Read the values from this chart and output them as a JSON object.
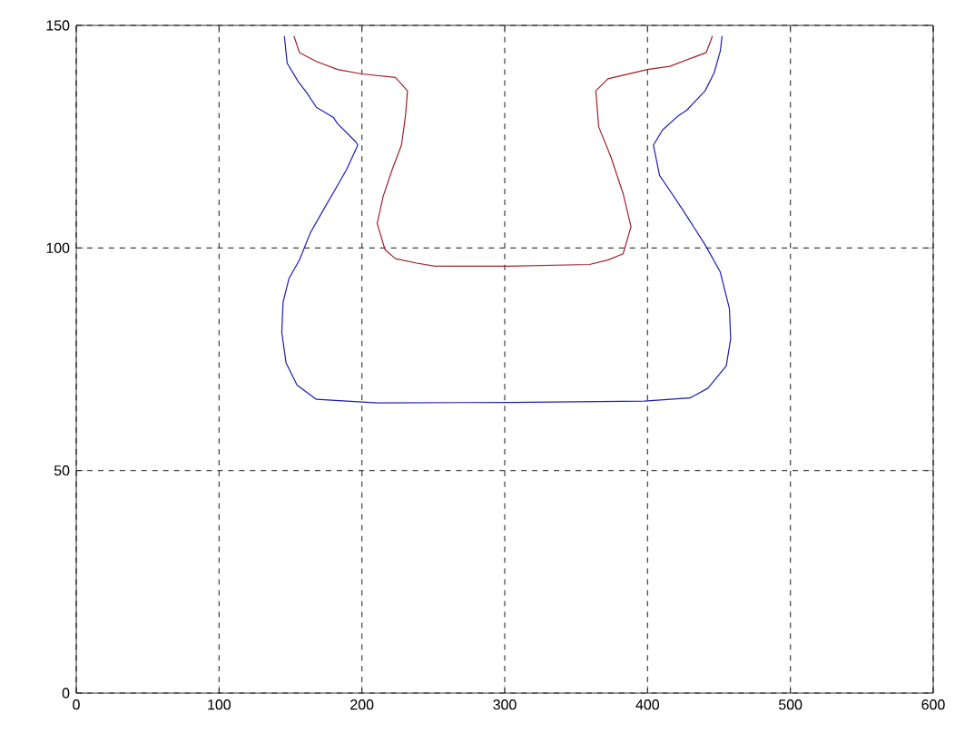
{
  "chart_data": {
    "type": "line",
    "xlim": [
      0,
      600
    ],
    "ylim": [
      0,
      150
    ],
    "xticks": [
      0,
      100,
      200,
      300,
      400,
      500,
      600
    ],
    "yticks": [
      0,
      50,
      100,
      150
    ],
    "grid": true,
    "marker": "none",
    "line_style": "solid",
    "series": [
      {
        "color": "#1c1cb0",
        "x": [
          145.7,
          147.7,
          155.4,
          161.8,
          168.1,
          180.1,
          183.0,
          195.8,
          197.1,
          189.4,
          180.9,
          172.4,
          163.9,
          156.3,
          149.0,
          144.8,
          143.9,
          146.9,
          154.6,
          168.1,
          210.7,
          304.1,
          397.7,
          429.6,
          442.3,
          455.1,
          458.2,
          457.3,
          450.9,
          440.3,
          425.4,
          415.6,
          408.4,
          404.1,
          410.5,
          421.2,
          427.6,
          440.3,
          446.7,
          450.9,
          452.2
        ],
        "values": [
          147.6,
          141.5,
          137.4,
          134.7,
          131.6,
          129.3,
          127.9,
          123.8,
          123.1,
          117.7,
          112.9,
          108.2,
          103.4,
          97.3,
          93.2,
          87.8,
          81.0,
          74.2,
          69.2,
          66.0,
          65.2,
          65.3,
          65.6,
          66.3,
          68.5,
          73.5,
          79.6,
          86.4,
          94.6,
          100.7,
          108.2,
          112.9,
          116.3,
          123.1,
          126.5,
          129.6,
          131.0,
          135.3,
          139.4,
          144.2,
          147.6
        ]
      },
      {
        "color": "#a0202a",
        "x": [
          152.4,
          156.3,
          168.1,
          183.0,
          200.0,
          223.5,
          231.9,
          230.6,
          227.7,
          221.3,
          214.9,
          210.7,
          216.2,
          223.5,
          238.3,
          251.0,
          304.1,
          359.4,
          372.2,
          382.9,
          388.4,
          382.9,
          374.4,
          365.8,
          363.8,
          372.2,
          399.9,
          415.6,
          441.1,
          445.4
        ],
        "values": [
          147.6,
          143.9,
          141.9,
          140.1,
          139.1,
          138.3,
          135.3,
          129.9,
          123.1,
          117.7,
          111.6,
          105.5,
          99.6,
          97.6,
          96.6,
          95.9,
          95.9,
          96.3,
          97.3,
          98.7,
          104.8,
          112.2,
          120.4,
          127.2,
          135.3,
          138.0,
          140.1,
          140.8,
          143.9,
          147.6
        ]
      }
    ]
  }
}
